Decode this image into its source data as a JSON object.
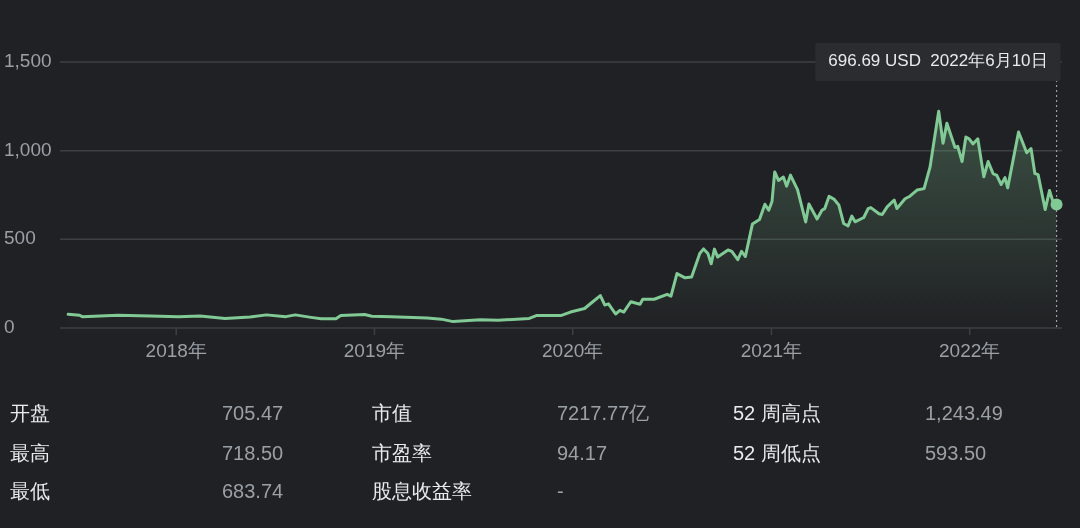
{
  "chart_data": {
    "type": "area",
    "color": "#81c995",
    "grid": "y",
    "x": [
      "2017-06-16",
      "2017-07-07",
      "2017-07-12",
      "2017-09-16",
      "2017-11-14",
      "2018-01-05",
      "2018-02-14",
      "2018-04-01",
      "2018-05-17",
      "2018-06-16",
      "2018-07-22",
      "2018-08-08",
      "2018-09-06",
      "2018-09-25",
      "2018-10-22",
      "2018-10-31",
      "2018-12-14",
      "2018-12-27",
      "2019-02-01",
      "2019-04-08",
      "2019-05-04",
      "2019-05-26",
      "2019-07-15",
      "2019-08-17",
      "2019-10-13",
      "2019-10-26",
      "2019-11-02",
      "2019-12-10",
      "2019-12-28",
      "2020-01-23",
      "2020-02-07",
      "2020-02-21",
      "2020-02-29",
      "2020-03-07",
      "2020-03-20",
      "2020-03-28",
      "2020-04-04",
      "2020-04-17",
      "2020-05-04",
      "2020-05-09",
      "2020-05-30",
      "2020-06-23",
      "2020-06-30",
      "2020-07-11",
      "2020-07-26",
      "2020-08-07",
      "2020-08-22",
      "2020-08-29",
      "2020-09-06",
      "2020-09-12",
      "2020-09-18",
      "2020-09-24",
      "2020-10-13",
      "2020-10-20",
      "2020-10-31",
      "2020-11-07",
      "2020-11-14",
      "2020-11-27",
      "2020-12-10",
      "2020-12-20",
      "2020-12-27",
      "2021-01-02",
      "2021-01-07",
      "2021-01-14",
      "2021-01-23",
      "2021-01-29",
      "2021-02-05",
      "2021-02-18",
      "2021-03-05",
      "2021-03-11",
      "2021-03-26",
      "2021-04-04",
      "2021-04-09",
      "2021-04-17",
      "2021-04-26",
      "2021-05-05",
      "2021-05-14",
      "2021-05-22",
      "2021-05-29",
      "2021-06-04",
      "2021-06-20",
      "2021-06-28",
      "2021-07-03",
      "2021-07-18",
      "2021-07-24",
      "2021-08-02",
      "2021-08-15",
      "2021-08-20",
      "2021-09-04",
      "2021-09-13",
      "2021-09-26",
      "2021-10-09",
      "2021-10-20",
      "2021-10-27",
      "2021-11-05",
      "2021-11-13",
      "2021-11-20",
      "2021-12-05",
      "2021-12-10",
      "2021-12-18",
      "2021-12-25",
      "2021-12-31",
      "2022-01-07",
      "2022-01-16",
      "2022-01-27",
      "2022-02-04",
      "2022-02-13",
      "2022-02-20",
      "2022-02-28",
      "2022-03-07",
      "2022-03-12",
      "2022-04-01",
      "2022-04-16",
      "2022-04-24",
      "2022-05-01",
      "2022-05-07",
      "2022-05-20",
      "2022-05-28",
      "2022-06-03",
      "2022-06-10"
    ],
    "values": [
      77,
      72,
      64,
      72,
      68,
      64,
      68,
      54,
      62,
      74,
      64,
      74,
      60,
      52,
      52,
      70,
      76,
      66,
      64,
      56,
      50,
      36,
      46,
      44,
      54,
      70,
      70,
      70,
      90,
      110,
      148,
      183,
      130,
      136,
      79,
      100,
      90,
      148,
      134,
      162,
      162,
      190,
      180,
      307,
      283,
      288,
      420,
      446,
      420,
      362,
      445,
      400,
      440,
      432,
      385,
      432,
      403,
      587,
      612,
      698,
      664,
      713,
      880,
      832,
      851,
      800,
      862,
      780,
      598,
      699,
      615,
      664,
      673,
      742,
      727,
      694,
      589,
      575,
      631,
      599,
      623,
      673,
      679,
      644,
      640,
      683,
      722,
      674,
      729,
      743,
      778,
      786,
      907,
      1046,
      1222,
      1042,
      1155,
      1018,
      1024,
      939,
      1077,
      1067,
      1038,
      1067,
      853,
      939,
      871,
      861,
      809,
      848,
      790,
      1105,
      988,
      1012,
      871,
      865,
      668,
      775,
      717,
      696.69
    ],
    "xlim": [
      "2017-06-01",
      "2022-06-20"
    ],
    "ylim": [
      0,
      1500
    ],
    "xticks": [
      {
        "value": "2018-01-01",
        "label": "2018年"
      },
      {
        "value": "2019-01-01",
        "label": "2019年"
      },
      {
        "value": "2020-01-01",
        "label": "2020年"
      },
      {
        "value": "2021-01-01",
        "label": "2021年"
      },
      {
        "value": "2022-01-01",
        "label": "2022年"
      }
    ],
    "yticks": [
      0,
      500,
      {
        "value": 1000,
        "label": "1,000"
      },
      {
        "value": 1500,
        "label": "1,500"
      }
    ],
    "ref_lines": [
      {
        "axis": "x",
        "value": "2022-06-10",
        "line_style": "dotted",
        "color": "#9aa0a6"
      }
    ],
    "annotations": [
      "696.69 USD  2022年6月10日",
      "开盘",
      "705.47",
      "市值",
      "7217.77亿",
      "52 周高点",
      "1,243.49",
      "最高",
      "718.50",
      "市盈率",
      "94.17",
      "52 周低点",
      "593.50",
      "最低",
      "683.74",
      "股息收益率",
      "-"
    ]
  }
}
